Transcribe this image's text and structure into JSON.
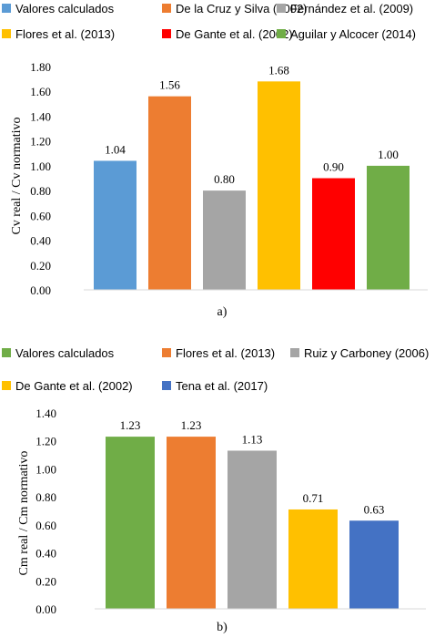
{
  "chart_data": [
    {
      "type": "bar",
      "caption": "a)",
      "ylabel": "Cv real / Cv normativo",
      "ylim": [
        0,
        1.8
      ],
      "yticks": [
        "0.00",
        "0.20",
        "0.40",
        "0.60",
        "0.80",
        "1.00",
        "1.20",
        "1.40",
        "1.60",
        "1.80"
      ],
      "grid": false,
      "legend_position": "top",
      "series": [
        {
          "name": "Valores calculados",
          "value": 1.04,
          "label": "1.04",
          "color": "#5b9bd5"
        },
        {
          "name": "De la Cruz y Silva (2002)",
          "value": 1.56,
          "label": "1.56",
          "color": "#ed7d31"
        },
        {
          "name": "Fernández et al. (2009)",
          "value": 0.8,
          "label": "0.80",
          "color": "#a5a5a5"
        },
        {
          "name": "Flores et al. (2013)",
          "value": 1.68,
          "label": "1.68",
          "color": "#ffc000"
        },
        {
          "name": "De Gante et al. (2002)",
          "value": 0.9,
          "label": "0.90",
          "color": "#ff0000"
        },
        {
          "name": "Aguilar y Alcocer (2014)",
          "value": 1.0,
          "label": "1.00",
          "color": "#70ad47"
        }
      ]
    },
    {
      "type": "bar",
      "caption": "b)",
      "ylabel": "Cm real / Cm normativo",
      "ylim": [
        0,
        1.4
      ],
      "yticks": [
        "0.00",
        "0.20",
        "0.40",
        "0.60",
        "0.80",
        "1.00",
        "1.20",
        "1.40"
      ],
      "grid": false,
      "legend_position": "top",
      "series": [
        {
          "name": "Valores calculados",
          "value": 1.23,
          "label": "1.23",
          "color": "#70ad47"
        },
        {
          "name": "Flores et al. (2013)",
          "value": 1.23,
          "label": "1.23",
          "color": "#ed7d31"
        },
        {
          "name": "Ruiz y Carboney (2006)",
          "value": 1.13,
          "label": "1.13",
          "color": "#a5a5a5"
        },
        {
          "name": "De Gante et al. (2002)",
          "value": 0.71,
          "label": "0.71",
          "color": "#ffc000"
        },
        {
          "name": "Tena et al. (2017)",
          "value": 0.63,
          "label": "0.63",
          "color": "#4472c4"
        }
      ]
    }
  ]
}
